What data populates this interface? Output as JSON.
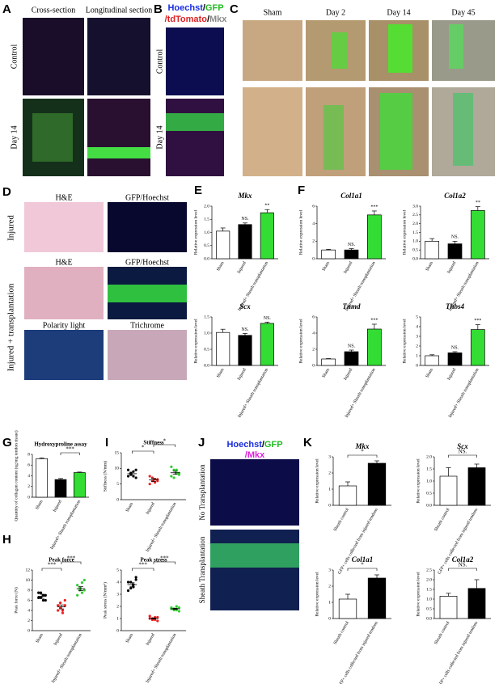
{
  "panel_labels": [
    "A",
    "B",
    "C",
    "D",
    "E",
    "F",
    "G",
    "H",
    "I",
    "J",
    "K"
  ],
  "panel_a": {
    "col_headers": [
      "Cross-section",
      "Longitudinal section"
    ],
    "row_labels": [
      "Control",
      "Day 14"
    ]
  },
  "panel_b": {
    "stain": [
      [
        {
          "text": "Hoechst",
          "color": "#1a2ee0"
        },
        {
          "text": "/",
          "color": "#000000"
        },
        {
          "text": "GFP",
          "color": "#22bb22"
        }
      ],
      [
        {
          "text": "/tdTomato",
          "color": "#dd2222"
        },
        {
          "text": "/",
          "color": "#000000"
        },
        {
          "text": "Mkx",
          "color": "#888888"
        }
      ]
    ],
    "row_labels": [
      "Control",
      "Day 14"
    ]
  },
  "panel_c": {
    "col_headers": [
      "Sham",
      "Day 2",
      "Day 14",
      "Day 45"
    ]
  },
  "panel_d": {
    "headers": [
      [
        "H&E",
        "GFP/Hoechst"
      ],
      [
        "H&E",
        "GFP/Hoechst"
      ],
      [
        "Polarity light",
        "Trichrome"
      ]
    ],
    "row_labels": [
      "Injured",
      "Injured + transplantation"
    ]
  },
  "panel_j": {
    "stain": [
      [
        {
          "text": "Hoechst",
          "color": "#1a2ee0"
        },
        {
          "text": "/",
          "color": "#000000"
        },
        {
          "text": "GFP",
          "color": "#22bb22"
        }
      ],
      [
        {
          "text": "/Mkx",
          "color": "#dd22dd"
        }
      ]
    ],
    "row_labels": [
      "No Transplantation",
      "Sheath Transplantation"
    ]
  },
  "chart_data": [
    {
      "type": "bar",
      "title": "Mkx",
      "ylabel": "Relative expression level",
      "categories": [
        "Sham",
        "Injured",
        "Injured+ Sheath transplantation"
      ],
      "values": [
        1.05,
        1.3,
        1.75
      ],
      "errors": [
        0.12,
        0.06,
        0.12
      ],
      "colors": [
        "#ffffff",
        "#000000",
        "#33dd33"
      ],
      "ylim": [
        0,
        2
      ],
      "yticks": [
        {
          "value": 0,
          "label": "0.0"
        },
        0.5,
        {
          "value": 1,
          "label": "1.0"
        },
        1.5,
        {
          "value": 2,
          "label": "2.0"
        }
      ],
      "annotations": [
        "NS.",
        "**"
      ]
    },
    {
      "type": "bar",
      "title": "Scx",
      "ylabel": "Relative expression level",
      "categories": [
        "Sham",
        "Injured",
        "Injured+ Sheath transplantation"
      ],
      "values": [
        1.02,
        0.93,
        1.3
      ],
      "errors": [
        0.1,
        0.06,
        0.04
      ],
      "colors": [
        "#ffffff",
        "#000000",
        "#33dd33"
      ],
      "ylim": [
        0,
        1.5
      ],
      "yticks": [
        {
          "value": 0,
          "label": "0.0"
        },
        0.5,
        {
          "value": 1,
          "label": "1.0"
        },
        1.5
      ],
      "annotations": [
        "NS.",
        "NS."
      ]
    },
    {
      "type": "bar",
      "title": "Col1a1",
      "ylabel": "Relative expression level",
      "categories": [
        "Sham",
        "Injured",
        "Injured+ Sheath transplantation"
      ],
      "values": [
        1.0,
        1.0,
        5.0
      ],
      "errors": [
        0.08,
        0.15,
        0.45
      ],
      "colors": [
        "#ffffff",
        "#000000",
        "#33dd33"
      ],
      "ylim": [
        0,
        6
      ],
      "yticks": [
        0,
        2,
        4,
        6
      ],
      "annotations": [
        "NS.",
        "***"
      ]
    },
    {
      "type": "bar",
      "title": "Col1a2",
      "ylabel": "Relative expression level",
      "categories": [
        "Sham",
        "Injured",
        "Injured+ Sheath transplantation"
      ],
      "values": [
        1.0,
        0.85,
        2.75
      ],
      "errors": [
        0.15,
        0.15,
        0.22
      ],
      "colors": [
        "#ffffff",
        "#000000",
        "#33dd33"
      ],
      "ylim": [
        0,
        3
      ],
      "yticks": [
        {
          "value": 0,
          "label": "0.0"
        },
        0.5,
        {
          "value": 1,
          "label": "1.0"
        },
        1.5,
        {
          "value": 2,
          "label": "2.0"
        },
        2.5,
        {
          "value": 3,
          "label": "3.0"
        }
      ],
      "annotations": [
        "NS.",
        "**"
      ]
    },
    {
      "type": "bar",
      "title": "Tnmd",
      "ylabel": "Relative expression level",
      "categories": [
        "Sham",
        "Injured",
        "Injured+ Sheath transplantation"
      ],
      "values": [
        0.8,
        1.7,
        4.5
      ],
      "errors": [
        0.05,
        0.2,
        0.6
      ],
      "colors": [
        "#ffffff",
        "#000000",
        "#33dd33"
      ],
      "ylim": [
        0,
        6
      ],
      "yticks": [
        0,
        2,
        4,
        6
      ],
      "annotations": [
        "NS.",
        "***"
      ]
    },
    {
      "type": "bar",
      "title": "Thbs4",
      "ylabel": "Relative expression level",
      "categories": [
        "Sham",
        "Injured",
        "Injured+ Sheath transplantation"
      ],
      "values": [
        1.0,
        1.3,
        3.7
      ],
      "errors": [
        0.1,
        0.12,
        0.5
      ],
      "colors": [
        "#ffffff",
        "#000000",
        "#33dd33"
      ],
      "ylim": [
        0,
        5
      ],
      "yticks": [
        0,
        1,
        2,
        3,
        4,
        5
      ],
      "annotations": [
        "NS.",
        "***"
      ]
    },
    {
      "type": "bar",
      "title": "Hydroxyproline assay",
      "ylabel": "Quantity of collagen content (ug/mg tendon tissue)",
      "categories": [
        "Sham",
        "Injured",
        "Injured+ Sheath transplantation"
      ],
      "values": [
        7.2,
        3.3,
        4.6
      ],
      "errors": [
        0.15,
        0.2,
        0.1
      ],
      "colors": [
        "#ffffff",
        "#000000",
        "#33dd33"
      ],
      "ylim": [
        0,
        8
      ],
      "yticks": [
        0,
        2,
        4,
        6,
        8
      ],
      "annotations": [
        "***"
      ]
    },
    {
      "type": "dot",
      "title": "Stiffness",
      "ylabel": "Stiffness (N/mm)",
      "categories": [
        "Sham",
        "Injured",
        "Injured+ Sheath transplantation"
      ],
      "points": [
        [
          9.5,
          8.5,
          7.5,
          7.0,
          7.5,
          8.0,
          9.0,
          9.5
        ],
        [
          7.5,
          6.0,
          5.5,
          6.5,
          5.0,
          7.0,
          6.5,
          6.0
        ],
        [
          10.5,
          9.5,
          8.5,
          8.0,
          7.5,
          7.0,
          9.5,
          8.5
        ]
      ],
      "values": [
        8.3,
        6.3,
        8.6
      ],
      "errors": [
        0.5,
        0.5,
        0.5
      ],
      "colors": [
        "#000000",
        "#ee2222",
        "#33cc33"
      ],
      "ylim": [
        0,
        15
      ],
      "yticks": [
        0,
        5,
        10,
        15
      ],
      "annotations": [
        "*",
        "*"
      ]
    },
    {
      "type": "dot",
      "title": "Peak force",
      "ylabel": "Peak force (N)",
      "categories": [
        "Sham",
        "Injured",
        "Injured+ Sheath transplantation"
      ],
      "points": [
        [
          6.5,
          7.5,
          7.0,
          6.0,
          7.5,
          6.5,
          6.0,
          7.0
        ],
        [
          5.0,
          4.5,
          3.5,
          6.0,
          4.0,
          5.5,
          4.0,
          5.0
        ],
        [
          9.0,
          8.5,
          7.5,
          10.0,
          7.0,
          8.0,
          9.5,
          8.0
        ]
      ],
      "values": [
        6.8,
        4.7,
        8.3
      ],
      "errors": [
        0.4,
        0.4,
        0.4
      ],
      "colors": [
        "#000000",
        "#ee2222",
        "#33cc33"
      ],
      "ylim": [
        0,
        12
      ],
      "yticks": [
        0,
        2,
        4,
        6,
        8,
        10,
        12
      ],
      "annotations": [
        "***",
        "***"
      ]
    },
    {
      "type": "dot",
      "title": "Peak stress",
      "ylabel": "Peak stress (N/mm²)",
      "categories": [
        "Sham",
        "Injured",
        "Injured+ Sheath transplantation"
      ],
      "points": [
        [
          4.0,
          3.5,
          3.8,
          4.4,
          3.3,
          4.0,
          3.6,
          4.2
        ],
        [
          1.0,
          0.9,
          1.1,
          0.8,
          1.2,
          1.0,
          0.9,
          1.1
        ],
        [
          1.8,
          1.7,
          2.0,
          1.6,
          1.9,
          1.8,
          1.7,
          1.9
        ]
      ],
      "values": [
        3.8,
        1.0,
        1.8
      ],
      "errors": [
        0.15,
        0.05,
        0.05
      ],
      "colors": [
        "#000000",
        "#ee2222",
        "#33cc33"
      ],
      "ylim": [
        0,
        5
      ],
      "yticks": [
        0,
        1,
        2,
        3,
        4,
        5
      ],
      "annotations": [
        "***",
        "***"
      ]
    },
    {
      "type": "bar",
      "title": "Mkx",
      "ylabel": "Relative expression level",
      "categories": [
        "Sheath control",
        "GFP+ cells collected from injured tendons"
      ],
      "values": [
        1.2,
        2.6
      ],
      "errors": [
        0.25,
        0.15
      ],
      "colors": [
        "#ffffff",
        "#000000"
      ],
      "ylim": [
        0,
        3
      ],
      "yticks": [
        0,
        1,
        2,
        3
      ],
      "annotations": [
        "*"
      ]
    },
    {
      "type": "bar",
      "title": "Scx",
      "ylabel": "Relative expression level",
      "categories": [
        "Sheath control",
        "GFP+ cells collected from injured tendons"
      ],
      "values": [
        1.2,
        1.55
      ],
      "errors": [
        0.35,
        0.15
      ],
      "colors": [
        "#ffffff",
        "#000000"
      ],
      "ylim": [
        0,
        2
      ],
      "yticks": [
        {
          "value": 0,
          "label": "0.0"
        },
        0.5,
        {
          "value": 1,
          "label": "1.0"
        },
        1.5,
        {
          "value": 2,
          "label": "2.0"
        }
      ],
      "annotations": [
        "NS."
      ]
    },
    {
      "type": "bar",
      "title": "Col1a1",
      "ylabel": "Relative expression level",
      "categories": [
        "Sheath control",
        "GFP+ cells collected from injured tendons"
      ],
      "values": [
        1.2,
        2.5
      ],
      "errors": [
        0.3,
        0.2
      ],
      "colors": [
        "#ffffff",
        "#000000"
      ],
      "ylim": [
        0,
        3
      ],
      "yticks": [
        0,
        1,
        2,
        3
      ],
      "annotations": [
        "*"
      ]
    },
    {
      "type": "bar",
      "title": "Col1a2",
      "ylabel": "Relative expression level",
      "categories": [
        "Sheath control",
        "GFP+ cells collected from injured tendons"
      ],
      "values": [
        1.15,
        1.55
      ],
      "errors": [
        0.15,
        0.45
      ],
      "colors": [
        "#ffffff",
        "#000000"
      ],
      "ylim": [
        0,
        2.5
      ],
      "yticks": [
        {
          "value": 0,
          "label": "0.0"
        },
        0.5,
        {
          "value": 1,
          "label": "1.0"
        },
        1.5,
        {
          "value": 2,
          "label": "2.0"
        },
        2.5
      ],
      "annotations": [
        "NS."
      ]
    }
  ]
}
